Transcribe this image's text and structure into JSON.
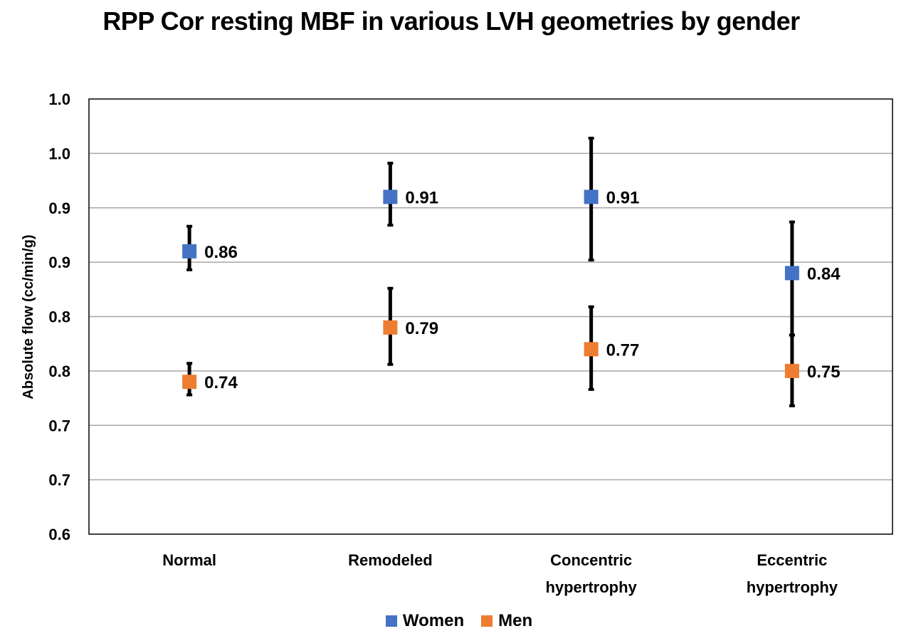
{
  "chart_data": {
    "type": "scatter",
    "title": "RPP Cor resting MBF in various LVH geometries by gender",
    "ylabel": "Absolute flow (cc/min/g)",
    "xlabel": "",
    "categories": [
      "Normal",
      "Remodeled",
      "Concentric hypertrophy",
      "Eccentric hypertrophy"
    ],
    "ylim": [
      0.6,
      1.0
    ],
    "ytick_labels": [
      "1.0",
      "1.0",
      "0.9",
      "0.9",
      "0.8",
      "0.8",
      "0.7",
      "0.7",
      "0.6"
    ],
    "grid": true,
    "legend_position": "bottom",
    "series": [
      {
        "name": "Women",
        "color": "#4472C4",
        "values": [
          0.86,
          0.91,
          0.91,
          0.84
        ],
        "labels": [
          "0.86",
          "0.91",
          "0.91",
          "0.84"
        ],
        "error_low": [
          0.843,
          0.884,
          0.852,
          0.783
        ],
        "error_high": [
          0.883,
          0.941,
          0.964,
          0.887
        ]
      },
      {
        "name": "Men",
        "color": "#ED7D31",
        "values": [
          0.74,
          0.79,
          0.77,
          0.75
        ],
        "labels": [
          "0.74",
          "0.79",
          "0.77",
          "0.75"
        ],
        "error_low": [
          0.728,
          0.756,
          0.733,
          0.718
        ],
        "error_high": [
          0.757,
          0.826,
          0.809,
          0.783
        ]
      }
    ]
  }
}
